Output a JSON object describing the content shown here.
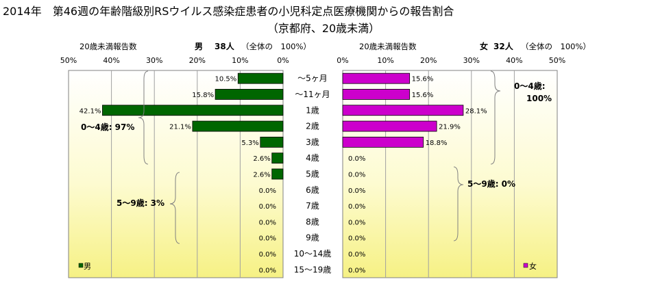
{
  "title": "2014年　第46週の年齢階級別RSウイルス感染症患者の小児科定点医療機関からの報告割合",
  "subtitle": "（京都府、20歳未満）",
  "age_groups": [
    "～5ヶ月",
    "～11ヶ月",
    "1歳",
    "2歳",
    "3歳",
    "4歳",
    "5歳",
    "6歳",
    "7歳",
    "8歳",
    "9歳",
    "10～14歳",
    "15～19歳"
  ],
  "panels": {
    "male": {
      "heading": "20歳未満報告数",
      "sex": "男",
      "count": "38人",
      "note": "（全体の　100%）",
      "legend": "男",
      "color": "#006600",
      "ticks": [
        "50%",
        "40%",
        "30%",
        "20%",
        "10%",
        "0%"
      ],
      "values": [
        10.5,
        15.8,
        42.1,
        21.1,
        5.3,
        2.6,
        2.6,
        0.0,
        0.0,
        0.0,
        0.0,
        0.0,
        0.0
      ],
      "labels": [
        "10.5%",
        "15.8%",
        "42.1%",
        "21.1%",
        "5.3%",
        "2.6%",
        "2.6%",
        "0.0%",
        "0.0%",
        "0.0%",
        "0.0%",
        "0.0%",
        "0.0%"
      ],
      "brace1": "0～4歳: 97%",
      "brace2": "5～9歳: 3%"
    },
    "female": {
      "heading": "20歳未満報告数",
      "sex": "女",
      "count": "32人",
      "note": "（全体の　100%）",
      "legend": "女",
      "color": "#cc00cc",
      "ticks": [
        "0%",
        "10%",
        "20%",
        "30%",
        "40%",
        "50%"
      ],
      "values": [
        15.6,
        15.6,
        28.1,
        21.9,
        18.8,
        0.0,
        0.0,
        0.0,
        0.0,
        0.0,
        0.0,
        0.0,
        0.0
      ],
      "labels": [
        "15.6%",
        "15.6%",
        "28.1%",
        "21.9%",
        "18.8%",
        "0.0%",
        "0.0%",
        "0.0%",
        "0.0%",
        "0.0%",
        "0.0%",
        "0.0%",
        "0.0%"
      ],
      "brace1_line1": "0～4歳:",
      "brace1_line2": "100%",
      "brace2": "5～9歳: 0%"
    }
  },
  "chart_data": [
    {
      "type": "bar",
      "categories": [
        "～5ヶ月",
        "～11ヶ月",
        "1歳",
        "2歳",
        "3歳",
        "4歳",
        "5歳",
        "6歳",
        "7歳",
        "8歳",
        "9歳",
        "10～14歳",
        "15～19歳"
      ],
      "series": [
        {
          "name": "男",
          "values": [
            10.5,
            15.8,
            42.1,
            21.1,
            5.3,
            2.6,
            2.6,
            0.0,
            0.0,
            0.0,
            0.0,
            0.0,
            0.0
          ]
        }
      ],
      "xlim": [
        50,
        0
      ],
      "grid": true
    },
    {
      "type": "bar",
      "categories": [
        "～5ヶ月",
        "～11ヶ月",
        "1歳",
        "2歳",
        "3歳",
        "4歳",
        "5歳",
        "6歳",
        "7歳",
        "8歳",
        "9歳",
        "10～14歳",
        "15～19歳"
      ],
      "series": [
        {
          "name": "女",
          "values": [
            15.6,
            15.6,
            28.1,
            21.9,
            18.8,
            0.0,
            0.0,
            0.0,
            0.0,
            0.0,
            0.0,
            0.0,
            0.0
          ]
        }
      ],
      "xlim": [
        0,
        50
      ],
      "grid": true
    }
  ]
}
